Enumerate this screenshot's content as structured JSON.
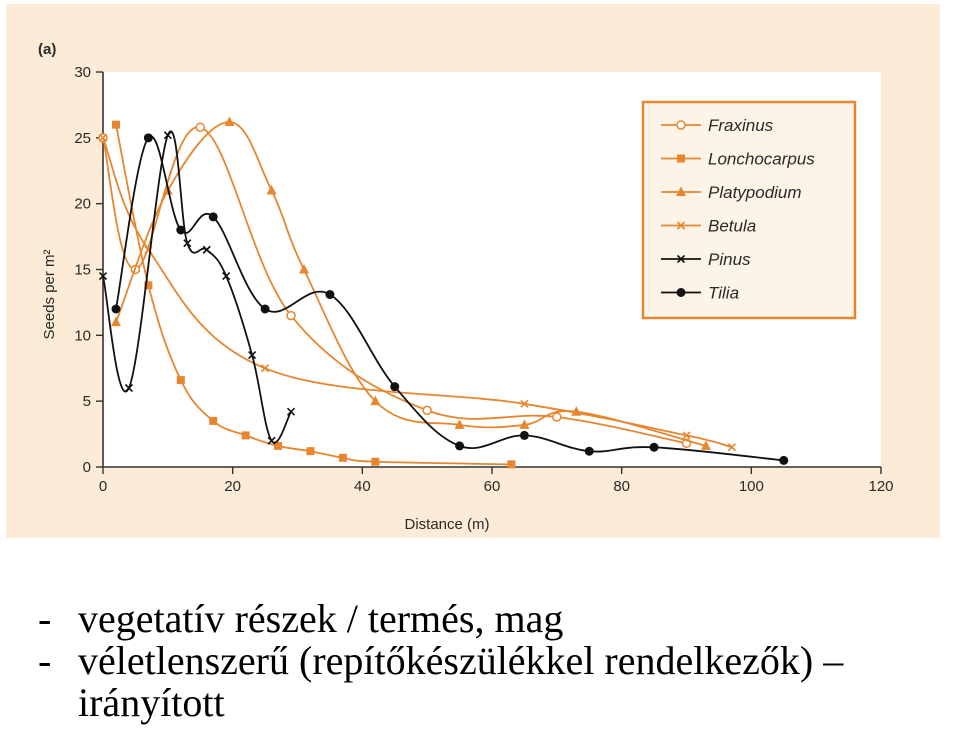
{
  "chart_data": {
    "type": "line",
    "panel_label": "(a)",
    "xlabel": "Distance (m)",
    "ylabel": "Seeds per m²",
    "xlim": [
      0,
      120
    ],
    "ylim": [
      0,
      30
    ],
    "xticks": [
      0,
      20,
      40,
      60,
      80,
      100,
      120
    ],
    "yticks": [
      0,
      5,
      10,
      15,
      20,
      25,
      30
    ],
    "legend_position": "top-right",
    "colors": {
      "background": "#fcebd6",
      "plot_area": "#ffffff",
      "orange": "#e8862f",
      "black": "#111111",
      "axis": "#333333"
    },
    "series": [
      {
        "name": "Fraxinus",
        "color": "#e8862f",
        "marker": "open-circle",
        "points": [
          [
            0,
            25
          ],
          [
            5,
            15
          ],
          [
            15,
            25.8
          ],
          [
            29,
            11.5
          ],
          [
            50,
            4.3
          ],
          [
            70,
            3.8
          ],
          [
            90,
            1.8
          ]
        ]
      },
      {
        "name": "Lonchocarpus",
        "color": "#e8862f",
        "marker": "square",
        "points": [
          [
            2,
            26
          ],
          [
            7,
            13.8
          ],
          [
            12,
            6.6
          ],
          [
            17,
            3.5
          ],
          [
            22,
            2.4
          ],
          [
            27,
            1.6
          ],
          [
            32,
            1.2
          ],
          [
            37,
            0.7
          ],
          [
            42,
            0.4
          ],
          [
            63,
            0.2
          ]
        ]
      },
      {
        "name": "Platypodium",
        "color": "#e8862f",
        "marker": "triangle",
        "points": [
          [
            2,
            11
          ],
          [
            10,
            21
          ],
          [
            19.5,
            26.2
          ],
          [
            26,
            21
          ],
          [
            31,
            15
          ],
          [
            42,
            5
          ],
          [
            55,
            3.2
          ],
          [
            65,
            3.2
          ],
          [
            73,
            4.2
          ],
          [
            93,
            1.6
          ]
        ]
      },
      {
        "name": "Betula",
        "color": "#e8862f",
        "marker": "x",
        "points": [
          [
            0,
            25
          ],
          [
            7,
            16.5
          ],
          [
            25,
            7.5
          ],
          [
            65,
            4.8
          ],
          [
            90,
            2.4
          ],
          [
            97,
            1.5
          ]
        ]
      },
      {
        "name": "Pinus",
        "color": "#111111",
        "marker": "x",
        "points": [
          [
            0,
            14.5
          ],
          [
            4,
            6
          ],
          [
            10,
            25.2
          ],
          [
            13,
            17
          ],
          [
            16,
            16.5
          ],
          [
            19,
            14.5
          ],
          [
            23,
            8.5
          ],
          [
            26,
            2
          ],
          [
            29,
            4.2
          ]
        ]
      },
      {
        "name": "Tilia",
        "color": "#111111",
        "marker": "filled-circle",
        "points": [
          [
            2,
            12
          ],
          [
            7,
            25
          ],
          [
            12,
            18
          ],
          [
            17,
            19
          ],
          [
            25,
            12
          ],
          [
            35,
            13.1
          ],
          [
            45,
            6.1
          ],
          [
            55,
            1.6
          ],
          [
            65,
            2.4
          ],
          [
            75,
            1.2
          ],
          [
            85,
            1.5
          ],
          [
            105,
            0.5
          ]
        ]
      }
    ]
  },
  "bullets": [
    {
      "dash": "-",
      "text": "vegetatív részek / termés, mag"
    },
    {
      "dash": "-",
      "text": "véletlenszerű (repítőkészülékkel rendelkezők) –"
    },
    {
      "dash": "",
      "text": "irányított"
    }
  ]
}
